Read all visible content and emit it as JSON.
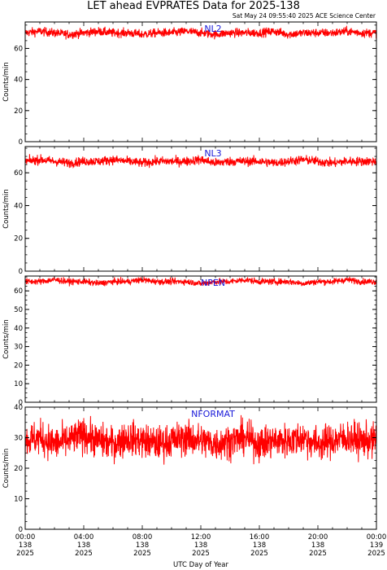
{
  "title": "LET ahead EVPRATES Data for 2025-138",
  "subtitle": "Sat May 24 09:55:40 2025 ACE Science Center",
  "xlabel": "UTC Day of Year",
  "colors": {
    "series": "#ff0000",
    "panel_label": "#1a1ad9",
    "axes": "#000000"
  },
  "x_ticks": [
    {
      "time": "00:00",
      "doy": "138",
      "year": "2025"
    },
    {
      "time": "04:00",
      "doy": "138",
      "year": "2025"
    },
    {
      "time": "08:00",
      "doy": "138",
      "year": "2025"
    },
    {
      "time": "12:00",
      "doy": "138",
      "year": "2025"
    },
    {
      "time": "16:00",
      "doy": "138",
      "year": "2025"
    },
    {
      "time": "20:00",
      "doy": "138",
      "year": "2025"
    },
    {
      "time": "00:00",
      "doy": "139",
      "year": "2025"
    }
  ],
  "chart_data": [
    {
      "type": "line",
      "name": "NL2",
      "ylabel": "Counts/min",
      "xlim": [
        0,
        24
      ],
      "ylim": [
        0,
        77
      ],
      "yticks": [
        0,
        20,
        40,
        60
      ],
      "mean": 70,
      "spread": 2.5,
      "x": [
        0,
        1,
        2,
        3,
        4,
        5,
        6,
        7,
        8,
        9,
        10,
        11,
        12,
        13,
        14,
        15,
        16,
        17,
        18,
        19,
        20,
        21,
        22,
        23,
        24
      ],
      "y": [
        70,
        71,
        70,
        69,
        70,
        71,
        70,
        70,
        69,
        70,
        70,
        71,
        70,
        69,
        70,
        70,
        70,
        71,
        69,
        70,
        70,
        70,
        71,
        70,
        70
      ]
    },
    {
      "type": "line",
      "name": "NL3",
      "ylabel": "Counts/min",
      "xlim": [
        0,
        24
      ],
      "ylim": [
        0,
        76
      ],
      "yticks": [
        0,
        20,
        40,
        60
      ],
      "mean": 67,
      "spread": 2.5,
      "x": [
        0,
        1,
        2,
        3,
        4,
        5,
        6,
        7,
        8,
        9,
        10,
        11,
        12,
        13,
        14,
        15,
        16,
        17,
        18,
        19,
        20,
        21,
        22,
        23,
        24
      ],
      "y": [
        67,
        68,
        67,
        66,
        67,
        67,
        68,
        67,
        66,
        67,
        67,
        67,
        68,
        66,
        67,
        67,
        67,
        66,
        67,
        68,
        67,
        66,
        67,
        67,
        67
      ]
    },
    {
      "type": "line",
      "name": "NPEN",
      "ylabel": "Counts/min",
      "xlim": [
        0,
        24
      ],
      "ylim": [
        0,
        68
      ],
      "yticks": [
        0,
        10,
        20,
        30,
        40,
        50,
        60
      ],
      "mean": 65,
      "spread": 1.5,
      "x": [
        0,
        1,
        2,
        3,
        4,
        5,
        6,
        7,
        8,
        9,
        10,
        11,
        12,
        13,
        14,
        15,
        16,
        17,
        18,
        19,
        20,
        21,
        22,
        23,
        24
      ],
      "y": [
        65,
        65,
        66,
        65,
        65,
        64,
        65,
        65,
        66,
        65,
        65,
        65,
        64,
        65,
        65,
        66,
        65,
        65,
        65,
        64,
        65,
        65,
        66,
        65,
        65
      ]
    },
    {
      "type": "line",
      "name": "NFORMAT",
      "ylabel": "Counts/min",
      "xlim": [
        0,
        24
      ],
      "ylim": [
        0,
        40
      ],
      "yticks": [
        0,
        10,
        20,
        30,
        40
      ],
      "mean": 29,
      "spread": 5,
      "x": [
        0,
        1,
        2,
        3,
        4,
        5,
        6,
        7,
        8,
        9,
        10,
        11,
        12,
        13,
        14,
        15,
        16,
        17,
        18,
        19,
        20,
        21,
        22,
        23,
        24
      ],
      "y": [
        29,
        30,
        28,
        29,
        31,
        29,
        28,
        30,
        29,
        28,
        29,
        30,
        29,
        28,
        29,
        30,
        28,
        29,
        29,
        30,
        28,
        29,
        30,
        29,
        29
      ]
    }
  ]
}
